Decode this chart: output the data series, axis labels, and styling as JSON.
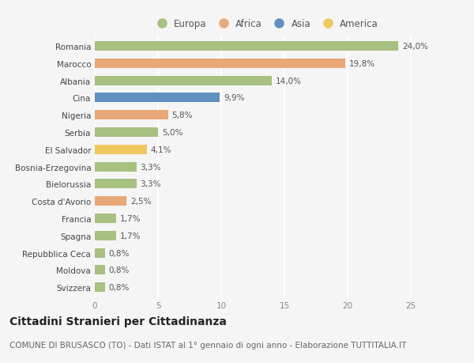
{
  "countries": [
    "Romania",
    "Marocco",
    "Albania",
    "Cina",
    "Nigeria",
    "Serbia",
    "El Salvador",
    "Bosnia-Erzegovina",
    "Bielorussia",
    "Costa d'Avorio",
    "Francia",
    "Spagna",
    "Repubblica Ceca",
    "Moldova",
    "Svizzera"
  ],
  "values": [
    24.0,
    19.8,
    14.0,
    9.9,
    5.8,
    5.0,
    4.1,
    3.3,
    3.3,
    2.5,
    1.7,
    1.7,
    0.8,
    0.8,
    0.8
  ],
  "labels": [
    "24,0%",
    "19,8%",
    "14,0%",
    "9,9%",
    "5,8%",
    "5,0%",
    "4,1%",
    "3,3%",
    "3,3%",
    "2,5%",
    "1,7%",
    "1,7%",
    "0,8%",
    "0,8%",
    "0,8%"
  ],
  "continents": [
    "Europa",
    "Africa",
    "Europa",
    "Asia",
    "Africa",
    "Europa",
    "America",
    "Europa",
    "Europa",
    "Africa",
    "Europa",
    "Europa",
    "Europa",
    "Europa",
    "Europa"
  ],
  "colors": {
    "Europa": "#a8c080",
    "Africa": "#e8a878",
    "Asia": "#6090c0",
    "America": "#f0c860"
  },
  "legend_order": [
    "Europa",
    "Africa",
    "Asia",
    "America"
  ],
  "xlim": [
    0,
    27
  ],
  "xticks": [
    0,
    5,
    10,
    15,
    20,
    25
  ],
  "title": "Cittadini Stranieri per Cittadinanza",
  "subtitle": "COMUNE DI BRUSASCO (TO) - Dati ISTAT al 1° gennaio di ogni anno - Elaborazione TUTTITALIA.IT",
  "bg_color": "#f5f5f5",
  "grid_color": "#ffffff",
  "bar_height": 0.55,
  "title_fontsize": 10,
  "subtitle_fontsize": 7.5,
  "label_fontsize": 7.5,
  "tick_fontsize": 7.5,
  "legend_fontsize": 8.5
}
